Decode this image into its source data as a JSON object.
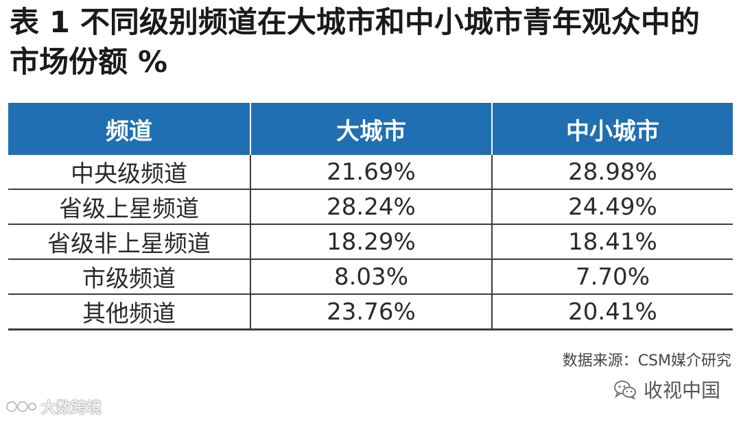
{
  "title": {
    "line1": "表 1  不同级别频道在大城市和中小城市青年观众中的",
    "line2": "市场份额 %"
  },
  "table": {
    "headers": [
      "频道",
      "大城市",
      "中小城市"
    ],
    "rows": [
      [
        "中央级频道",
        "21.69%",
        "28.98%"
      ],
      [
        "省级上星频道",
        "28.24%",
        "24.49%"
      ],
      [
        "省级非上星频道",
        "18.29%",
        "18.41%"
      ],
      [
        "市级频道",
        "8.03%",
        "7.70%"
      ],
      [
        "其他频道",
        "23.76%",
        "20.41%"
      ]
    ]
  },
  "source": "数据来源：CSM媒介研究",
  "watermark_right": {
    "icon": "wechat-icon",
    "text": "收视中国"
  },
  "watermark_left": {
    "icon": "logo-icon",
    "text": "大数跨境"
  },
  "colors": {
    "header_bg": "#1f6fb2",
    "header_text": "#ffffff",
    "grid_line": "#3a3a3a"
  }
}
